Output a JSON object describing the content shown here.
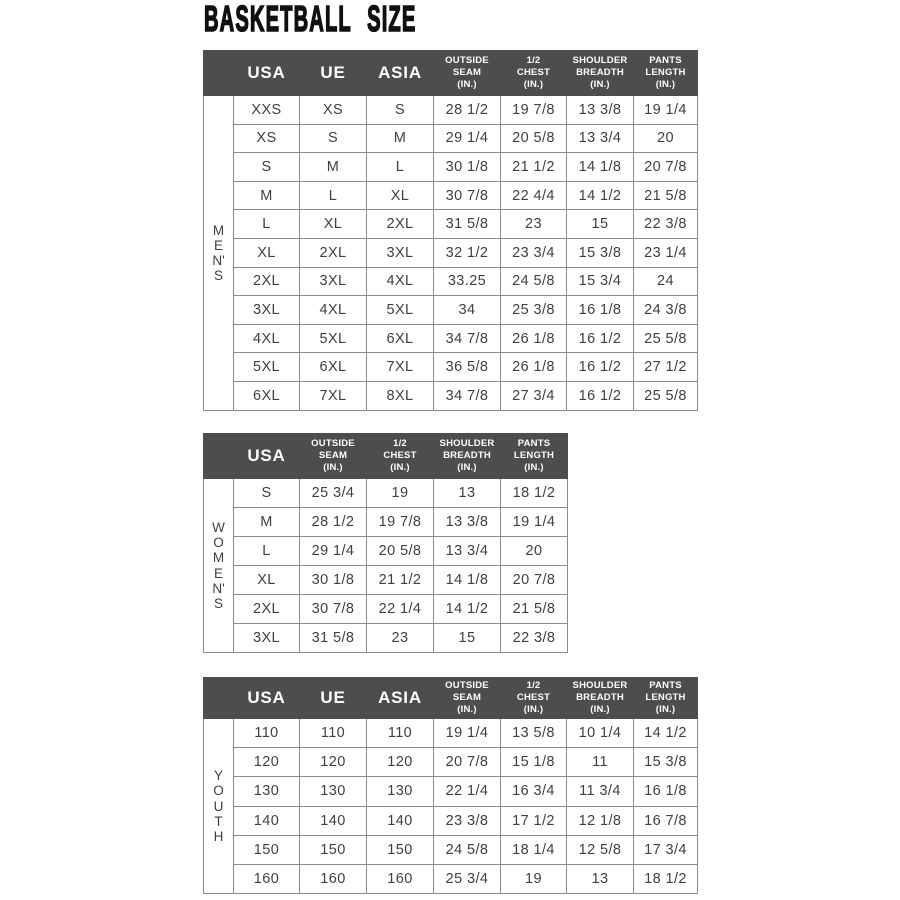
{
  "page": {
    "title": "BASKETBALL  SIZE"
  },
  "colors": {
    "header_bg": "#4d4d4d",
    "header_text": "#ffffff",
    "body_text": "#3f3f3f",
    "grid": "#8c8c8c",
    "title": "#101010"
  },
  "tables": [
    {
      "id": "mens",
      "side_label_text": "MEN'S",
      "side_label": "M\nE\nN'\nS",
      "columns": [
        "USA",
        "UE",
        "ASIA",
        "OUTSIDE\nSEAM\n(IN.)",
        "1/2\nCHEST\n(IN.)",
        "SHOULDER\nBREADTH\n(IN.)",
        "PANTS\nLENGTH\n(IN.)"
      ],
      "rows": [
        [
          "XXS",
          "XS",
          "S",
          "28 1/2",
          "19 7/8",
          "13 3/8",
          "19 1/4"
        ],
        [
          "XS",
          "S",
          "M",
          "29 1/4",
          "20 5/8",
          "13 3/4",
          "20"
        ],
        [
          "S",
          "M",
          "L",
          "30 1/8",
          "21 1/2",
          "14 1/8",
          "20 7/8"
        ],
        [
          "M",
          "L",
          "XL",
          "30 7/8",
          "22 4/4",
          "14 1/2",
          "21 5/8"
        ],
        [
          "L",
          "XL",
          "2XL",
          "31 5/8",
          "23",
          "15",
          "22 3/8"
        ],
        [
          "XL",
          "2XL",
          "3XL",
          "32 1/2",
          "23 3/4",
          "15 3/8",
          "23 1/4"
        ],
        [
          "2XL",
          "3XL",
          "4XL",
          "33.25",
          "24 5/8",
          "15 3/4",
          "24"
        ],
        [
          "3XL",
          "4XL",
          "5XL",
          "34",
          "25 3/8",
          "16 1/8",
          "24 3/8"
        ],
        [
          "4XL",
          "5XL",
          "6XL",
          "34 7/8",
          "26 1/8",
          "16 1/2",
          "25 5/8"
        ],
        [
          "5XL",
          "6XL",
          "7XL",
          "36 5/8",
          "26 1/8",
          "16 1/2",
          "27 1/2"
        ],
        [
          "6XL",
          "7XL",
          "8XL",
          "34 7/8",
          "27 3/4",
          "16 1/2",
          "25 5/8"
        ]
      ]
    },
    {
      "id": "womens",
      "side_label_text": "WOMEN'S",
      "side_label": "W\nO\nM\nE\nN'\nS",
      "columns": [
        "USA",
        "OUTSIDE\nSEAM\n(IN.)",
        "1/2\nCHEST\n(IN.)",
        "SHOULDER\nBREADTH\n(IN.)",
        "PANTS\nLENGTH\n(IN.)"
      ],
      "rows": [
        [
          "S",
          "25 3/4",
          "19",
          "13",
          "18 1/2"
        ],
        [
          "M",
          "28 1/2",
          "19 7/8",
          "13 3/8",
          "19 1/4"
        ],
        [
          "L",
          "29 1/4",
          "20 5/8",
          "13 3/4",
          "20"
        ],
        [
          "XL",
          "30 1/8",
          "21 1/2",
          "14 1/8",
          "20 7/8"
        ],
        [
          "2XL",
          "30 7/8",
          "22 1/4",
          "14 1/2",
          "21 5/8"
        ],
        [
          "3XL",
          "31 5/8",
          "23",
          "15",
          "22 3/8"
        ]
      ]
    },
    {
      "id": "youth",
      "side_label_text": "YOUTH",
      "side_label": "Y\nO\nU\nT\nH",
      "columns": [
        "USA",
        "UE",
        "ASIA",
        "OUTSIDE\nSEAM\n(IN.)",
        "1/2\nCHEST\n(IN.)",
        "SHOULDER\nBREADTH\n(IN.)",
        "PANTS\nLENGTH\n(IN.)"
      ],
      "rows": [
        [
          "110",
          "110",
          "110",
          "19 1/4",
          "13 5/8",
          "10 1/4",
          "14 1/2"
        ],
        [
          "120",
          "120",
          "120",
          "20 7/8",
          "15 1/8",
          "11",
          "15 3/8"
        ],
        [
          "130",
          "130",
          "130",
          "22 1/4",
          "16 3/4",
          "11 3/4",
          "16 1/8"
        ],
        [
          "140",
          "140",
          "140",
          "23 3/8",
          "17 1/2",
          "12 1/8",
          "16 7/8"
        ],
        [
          "150",
          "150",
          "150",
          "24 5/8",
          "18 1/4",
          "12 5/8",
          "17 3/4"
        ],
        [
          "160",
          "160",
          "160",
          "25 3/4",
          "19",
          "13",
          "18 1/2"
        ]
      ]
    }
  ]
}
